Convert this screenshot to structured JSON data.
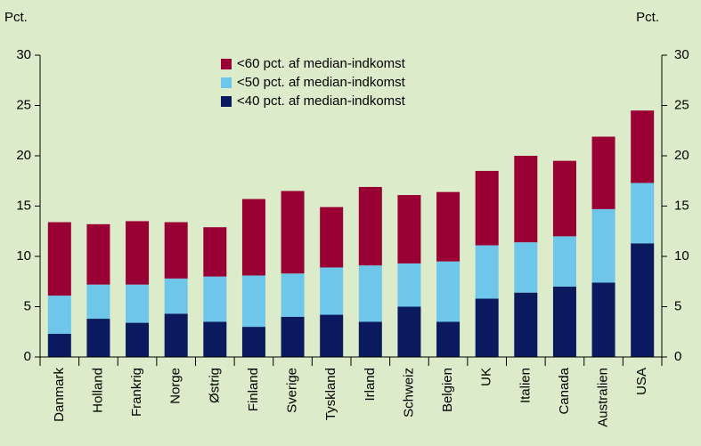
{
  "chart_data": {
    "type": "stacked_bar",
    "ylabel": "Pct.",
    "y2label": "Pct.",
    "categories": [
      "Danmark",
      "Holland",
      "Frankrig",
      "Norge",
      "Østrig",
      "Finland",
      "Sverige",
      "Tyskland",
      "Irland",
      "Schweiz",
      "Belgien",
      "UK",
      "Italien",
      "Canada",
      "Australien",
      "USA"
    ],
    "series": [
      {
        "name": "<40 pct. af median-indkomst",
        "color": "#0b1a5e",
        "values": [
          2.3,
          3.8,
          3.4,
          4.3,
          3.5,
          3.0,
          4.0,
          4.2,
          3.5,
          5.0,
          3.5,
          5.8,
          6.4,
          7.0,
          7.4,
          11.3
        ]
      },
      {
        "name": "<50 pct. af median-indkomst",
        "color": "#6ec6ea",
        "values": [
          3.8,
          3.4,
          3.8,
          3.5,
          4.5,
          5.1,
          4.3,
          4.7,
          5.6,
          4.3,
          6.0,
          5.3,
          5.0,
          5.0,
          7.3,
          6.0
        ]
      },
      {
        "name": "<60 pct. af median-indkomst",
        "color": "#990033",
        "values": [
          7.3,
          6.0,
          6.3,
          5.6,
          4.9,
          7.6,
          8.2,
          6.0,
          7.8,
          6.8,
          6.9,
          7.4,
          8.6,
          7.5,
          7.2,
          7.2
        ]
      }
    ],
    "ylim": [
      0,
      30
    ],
    "yticks": [
      0,
      5,
      10,
      15,
      20,
      25,
      30
    ],
    "y2lim": [
      0,
      30
    ],
    "y2ticks": [
      0,
      5,
      10,
      15,
      20,
      25,
      30
    ]
  }
}
